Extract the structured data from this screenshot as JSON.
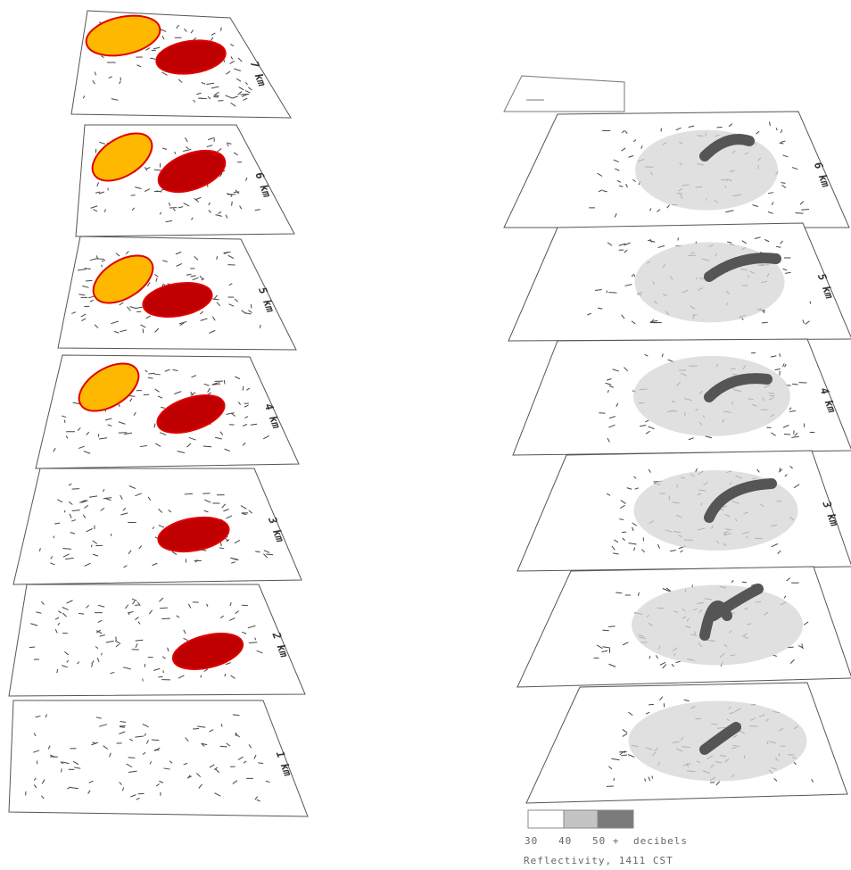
{
  "left_panel": {
    "levels": [
      "7 km",
      "6 km",
      "5 km",
      "4 km",
      "3 km",
      "2 km",
      "1 km"
    ]
  },
  "right_panel": {
    "levels": [
      "6 km",
      "5 km",
      "4 km",
      "3 km"
    ]
  },
  "legend": {
    "ticks": [
      "30",
      "40",
      "50 +"
    ],
    "unit": "decibels",
    "caption": "Reflectivity, 1411 CST"
  }
}
